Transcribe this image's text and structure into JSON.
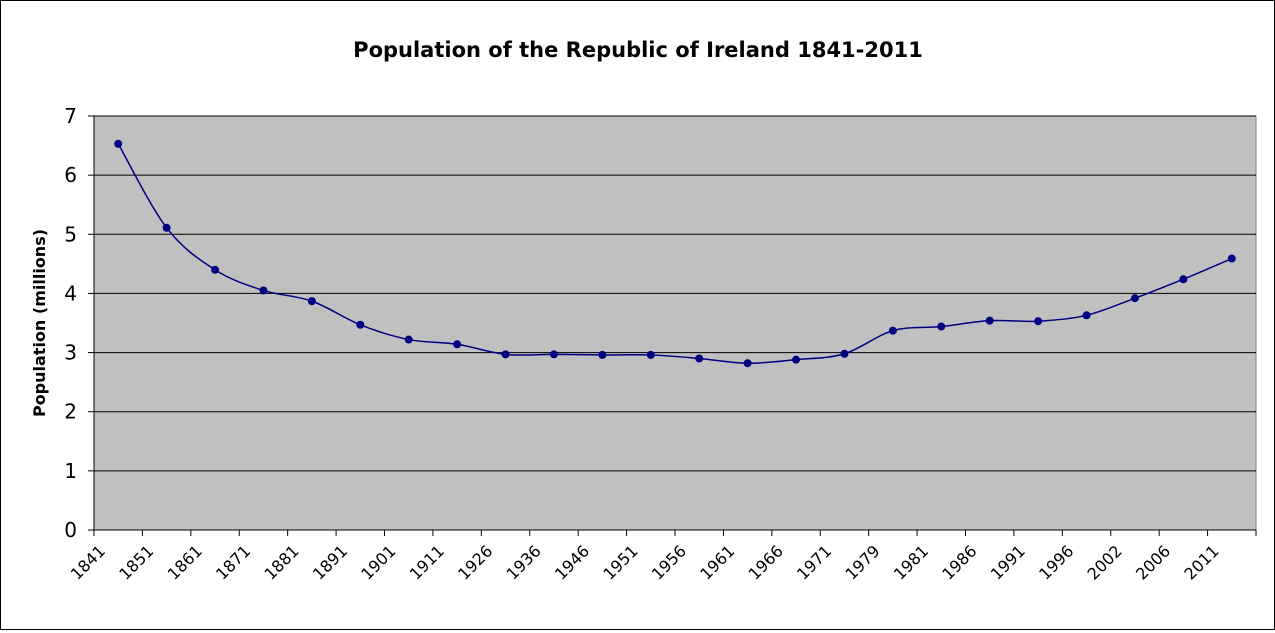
{
  "chart_data": {
    "type": "line",
    "title": "Population of the Republic of Ireland 1841-2011",
    "ylabel": "Population (millions)",
    "xlabel": "",
    "ylim": [
      0,
      7
    ],
    "yticks": [
      "0",
      "1",
      "2",
      "3",
      "4",
      "5",
      "6",
      "7"
    ],
    "categories": [
      "1841",
      "1851",
      "1861",
      "1871",
      "1881",
      "1891",
      "1901",
      "1911",
      "1926",
      "1936",
      "1946",
      "1951",
      "1956",
      "1961",
      "1966",
      "1971",
      "1979",
      "1981",
      "1986",
      "1991",
      "1996",
      "2002",
      "2006",
      "2011"
    ],
    "series": [
      {
        "values": [
          6.53,
          5.11,
          4.4,
          4.05,
          3.87,
          3.47,
          3.22,
          3.14,
          2.97,
          2.97,
          2.96,
          2.96,
          2.9,
          2.82,
          2.88,
          2.98,
          3.37,
          3.44,
          3.54,
          3.53,
          3.63,
          3.92,
          4.24,
          4.59
        ],
        "color": "#000080"
      }
    ],
    "grid": true,
    "legend": "none",
    "plot_background": "#C0C0C0"
  }
}
